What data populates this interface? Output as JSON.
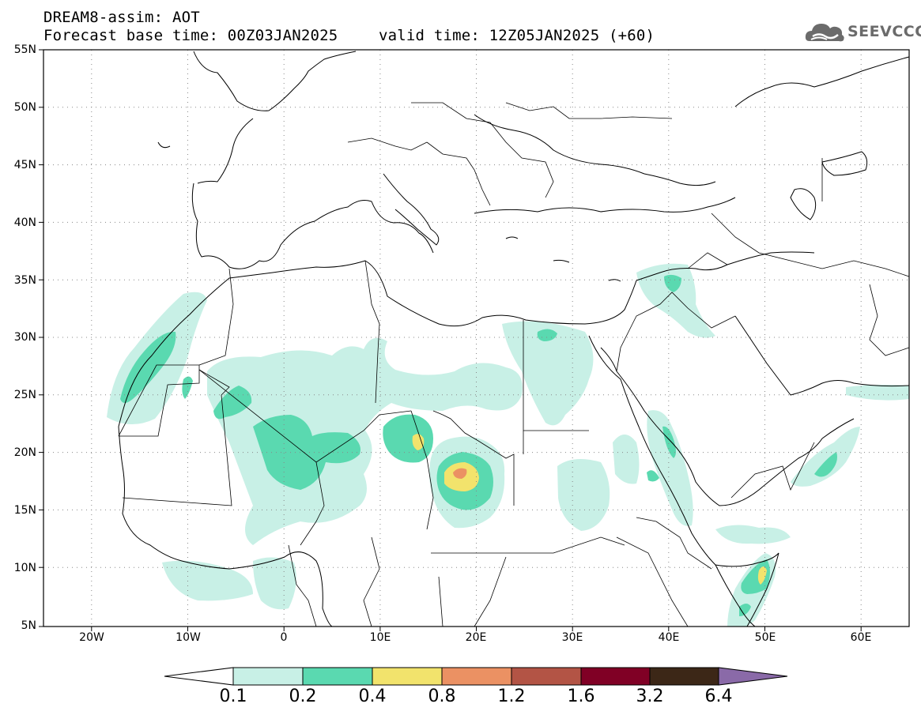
{
  "title": {
    "line1": "DREAM8-assim: AOT",
    "base": "Forecast base time: 00Z03JAN2025",
    "valid": "valid time: 12Z05JAN2025 (+60)"
  },
  "logo": {
    "text": "SEEVCCC",
    "icon": "cloud-logo-icon"
  },
  "map": {
    "lon_range": [
      -25,
      65
    ],
    "lat_range": [
      5,
      55
    ],
    "grid": "dotted",
    "lat_labels": [
      "55N",
      "50N",
      "45N",
      "40N",
      "35N",
      "30N",
      "25N",
      "20N",
      "15N",
      "10N",
      "5N"
    ],
    "lon_labels": [
      "20W",
      "10W",
      "0",
      "10E",
      "20E",
      "30E",
      "40E",
      "50E",
      "60E"
    ]
  },
  "colorbar": {
    "labels": [
      "0.1",
      "0.2",
      "0.4",
      "0.8",
      "1.2",
      "1.6",
      "3.2",
      "6.4"
    ],
    "colors": [
      "#ffffff",
      "#c8f0e6",
      "#5ad9b0",
      "#f2e36c",
      "#eb9163",
      "#b35445",
      "#800025",
      "#3c2717",
      "#8a6aa8"
    ]
  }
}
